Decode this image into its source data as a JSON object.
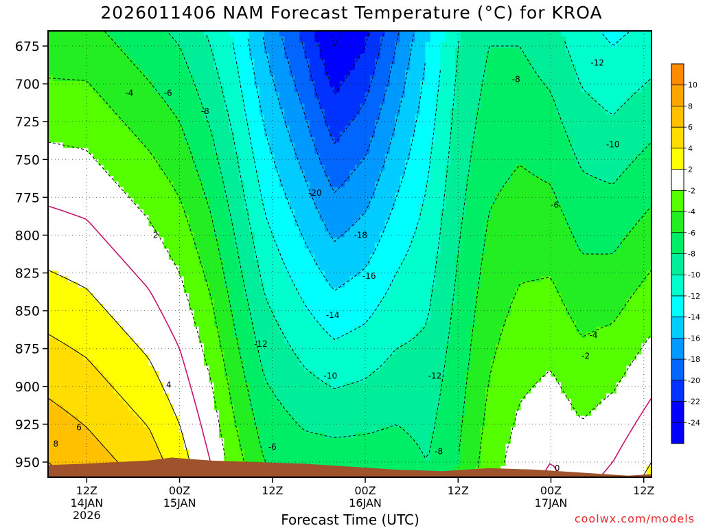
{
  "title": "2026011406 NAM Forecast Temperature (°C) for KROA",
  "credit": "coolwx.com/models",
  "colors": {
    "terrain": "#a0522d",
    "zero_line": "#c8146e",
    "credit": "#e8272d"
  },
  "chart_data": {
    "type": "heatmap",
    "title": "2026011406 NAM Forecast Temperature (°C) for KROA",
    "xlabel": "Forecast Time (UTC)",
    "ylabel": "",
    "y_axis": {
      "unit": "hPa",
      "inverted": true,
      "ticks": [
        675,
        700,
        725,
        750,
        775,
        800,
        825,
        850,
        875,
        900,
        925,
        950
      ],
      "ylim": [
        960,
        665
      ]
    },
    "x_axis": {
      "unit": "hours from 2026-01-14 00Z",
      "xlim": [
        7,
        85
      ],
      "ticks": [
        {
          "x": 12,
          "lines": [
            "12Z",
            "14JAN",
            "2026"
          ]
        },
        {
          "x": 24,
          "lines": [
            "00Z",
            "15JAN"
          ]
        },
        {
          "x": 36,
          "lines": [
            "12Z"
          ]
        },
        {
          "x": 48,
          "lines": [
            "00Z",
            "16JAN"
          ]
        },
        {
          "x": 60,
          "lines": [
            "12Z"
          ]
        },
        {
          "x": 72,
          "lines": [
            "00Z",
            "17JAN"
          ]
        },
        {
          "x": 84,
          "lines": [
            "12Z"
          ]
        }
      ]
    },
    "grid": true,
    "colorbar": {
      "position": "right",
      "levels": [
        {
          "value": 10,
          "label": "10",
          "color": "#ff8c00"
        },
        {
          "value": 8,
          "label": "8",
          "color": "#ffa500"
        },
        {
          "value": 6,
          "label": "6",
          "color": "#ffc000"
        },
        {
          "value": 4,
          "label": "4",
          "color": "#ffdd00"
        },
        {
          "value": 2,
          "label": "2",
          "color": "#ffff00"
        },
        {
          "value": -2,
          "label": "-2",
          "color": "#ffffff"
        },
        {
          "value": -4,
          "label": "-4",
          "color": "#55ff00"
        },
        {
          "value": -6,
          "label": "-6",
          "color": "#22ee22"
        },
        {
          "value": -8,
          "label": "-8",
          "color": "#00ee66"
        },
        {
          "value": -10,
          "label": "-10",
          "color": "#00ee99"
        },
        {
          "value": -12,
          "label": "-12",
          "color": "#00ffcc"
        },
        {
          "value": -14,
          "label": "-14",
          "color": "#00ffff"
        },
        {
          "value": -16,
          "label": "-16",
          "color": "#00ccff"
        },
        {
          "value": -18,
          "label": "-18",
          "color": "#0099ff"
        },
        {
          "value": -20,
          "label": "-20",
          "color": "#0066ff"
        },
        {
          "value": -22,
          "label": "-22",
          "color": "#0033ff"
        },
        {
          "value": -24,
          "label": "-24",
          "color": "#0000ff"
        }
      ]
    },
    "temperature_field": [
      {
        "hour": 7,
        "t675": -5,
        "t950": 8
      },
      {
        "hour": 12,
        "t675": -5,
        "t950": 7
      },
      {
        "hour": 16,
        "t675": -6,
        "t950": 6
      },
      {
        "hour": 20,
        "t675": -7,
        "t950": 5
      },
      {
        "hour": 24,
        "t675": -8,
        "t950": 3
      },
      {
        "hour": 28,
        "t675": -10,
        "t950": 0
      },
      {
        "hour": 31,
        "t675": -12,
        "t950": -3
      },
      {
        "hour": 35,
        "t675": -16,
        "t950": -6
      },
      {
        "hour": 40,
        "t675": -20,
        "t950": -7
      },
      {
        "hour": 44,
        "t675": -24,
        "t950": -7
      },
      {
        "hour": 48,
        "t675": -22,
        "t950": -7
      },
      {
        "hour": 52,
        "t675": -18,
        "t950": -7
      },
      {
        "hour": 56,
        "t675": -14,
        "t950": -8
      },
      {
        "hour": 60,
        "t675": -10,
        "t950": -6
      },
      {
        "hour": 64,
        "t675": -8,
        "t950": -3
      },
      {
        "hour": 68,
        "t675": -8,
        "t950": -1
      },
      {
        "hour": 72,
        "t675": -9,
        "t950": 0
      },
      {
        "hour": 76,
        "t675": -11,
        "t950": -1
      },
      {
        "hour": 80,
        "t675": -12,
        "t950": 0
      },
      {
        "hour": 85,
        "t675": -11,
        "t950": 2
      }
    ],
    "contour_labels": [
      {
        "text": "-4",
        "x": 17.5,
        "y": 706
      },
      {
        "text": "-6",
        "x": 22.5,
        "y": 706
      },
      {
        "text": "-8",
        "x": 27.3,
        "y": 718
      },
      {
        "text": "2",
        "x": 20.9,
        "y": 800
      },
      {
        "text": "4",
        "x": 22.6,
        "y": 899
      },
      {
        "text": "6",
        "x": 11.0,
        "y": 927
      },
      {
        "text": "8",
        "x": 8.0,
        "y": 938
      },
      {
        "text": "-20",
        "x": 41.5,
        "y": 772
      },
      {
        "text": "-18",
        "x": 47.4,
        "y": 800
      },
      {
        "text": "-16",
        "x": 48.5,
        "y": 827
      },
      {
        "text": "-14",
        "x": 43.8,
        "y": 853
      },
      {
        "text": "-12",
        "x": 34.5,
        "y": 872
      },
      {
        "text": "-12",
        "x": 57.0,
        "y": 893
      },
      {
        "text": "-10",
        "x": 43.5,
        "y": 893
      },
      {
        "text": "-6",
        "x": 36.0,
        "y": 940
      },
      {
        "text": "-8",
        "x": 57.5,
        "y": 943
      },
      {
        "text": "-8",
        "x": 67.5,
        "y": 697
      },
      {
        "text": "-12",
        "x": 78.0,
        "y": 686
      },
      {
        "text": "-10",
        "x": 80.0,
        "y": 740
      },
      {
        "text": "-6",
        "x": 72.5,
        "y": 780
      },
      {
        "text": "-4",
        "x": 77.5,
        "y": 866
      },
      {
        "text": "-2",
        "x": 76.5,
        "y": 880
      },
      {
        "text": "0",
        "x": 72.8,
        "y": 954
      }
    ],
    "terrain_surface": [
      {
        "hour": 7,
        "p": 952
      },
      {
        "hour": 12,
        "p": 951
      },
      {
        "hour": 16,
        "p": 950
      },
      {
        "hour": 20,
        "p": 949
      },
      {
        "hour": 23,
        "p": 947
      },
      {
        "hour": 28,
        "p": 949
      },
      {
        "hour": 34,
        "p": 950
      },
      {
        "hour": 40,
        "p": 951
      },
      {
        "hour": 46,
        "p": 953
      },
      {
        "hour": 52,
        "p": 955
      },
      {
        "hour": 58,
        "p": 956
      },
      {
        "hour": 64,
        "p": 954
      },
      {
        "hour": 70,
        "p": 955
      },
      {
        "hour": 76,
        "p": 957
      },
      {
        "hour": 82,
        "p": 959
      },
      {
        "hour": 85,
        "p": 958
      }
    ]
  }
}
